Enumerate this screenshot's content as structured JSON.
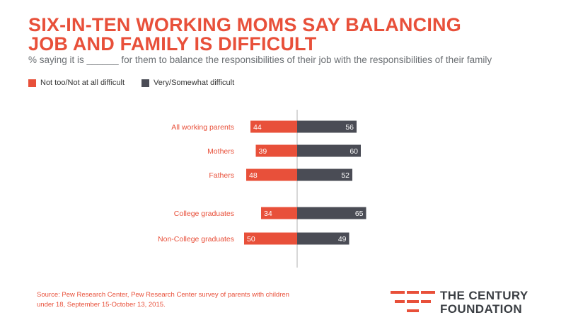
{
  "header": {
    "title_line1": "SIX-IN-TEN WORKING MOMS SAY BALANCING",
    "title_line2": "JOB AND FAMILY IS DIFFICULT",
    "subtitle": "% saying it is ______ for them to balance the responsibilities of their job with the responsibilities of their family"
  },
  "legend": {
    "items": [
      {
        "label": "Not too/Not at all difficult",
        "color": "#e8503a"
      },
      {
        "label": "Very/Somewhat difficult",
        "color": "#4a4c55"
      }
    ]
  },
  "chart_data": {
    "type": "bar",
    "orientation": "horizontal-diverging",
    "categories": [
      "All working parents",
      "Mothers",
      "Fathers",
      "College graduates",
      "Non-College graduates"
    ],
    "series": [
      {
        "name": "Not too/Not at all difficult",
        "values": [
          44,
          39,
          48,
          34,
          50
        ],
        "color": "#e8503a"
      },
      {
        "name": "Very/Somewhat difficult",
        "values": [
          56,
          60,
          52,
          65,
          49
        ],
        "color": "#4a4c55"
      }
    ],
    "title": "SIX-IN-TEN WORKING MOMS SAY BALANCING JOB AND FAMILY IS DIFFICULT",
    "xlabel": "",
    "ylabel": "",
    "legend_position": "top-left",
    "grid": false
  },
  "footer": {
    "source_line1": "Source: Pew Research Center, Pew Research Center survey of parents with children",
    "source_line2": "under 18, September 15-October 13, 2015.",
    "logo_line1": "THE CENTURY",
    "logo_line2": "FOUNDATION"
  }
}
